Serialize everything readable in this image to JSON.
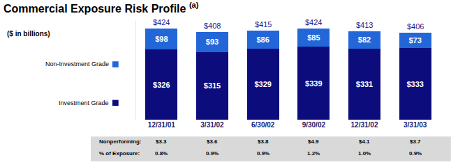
{
  "chart_data": {
    "type": "bar",
    "title": "Commercial Exposure Risk Profile",
    "title_note": "(a)",
    "subtitle": "($ in billions)",
    "categories": [
      "12/31/01",
      "3/31/02",
      "6/30/02",
      "9/30/02",
      "12/31/02",
      "3/31/03"
    ],
    "stacked": true,
    "data_labels": true,
    "tick_labels": "x",
    "grid": false,
    "ylim": [
      0,
      460
    ],
    "yticks": [
      0
    ],
    "series": [
      {
        "name": "Investment Grade",
        "color": "#0c0c7c",
        "values": [
          326,
          315,
          329,
          339,
          331,
          333
        ],
        "value_labels": [
          "$326",
          "$315",
          "$329",
          "$339",
          "$331",
          "$333"
        ]
      },
      {
        "name": "Non-Investment Grade",
        "color": "#2266d8",
        "values": [
          98,
          93,
          86,
          85,
          82,
          73
        ],
        "value_labels": [
          "$98",
          "$93",
          "$86",
          "$85",
          "$82",
          "$73"
        ]
      }
    ],
    "totals": [
      424,
      408,
      415,
      424,
      413,
      406
    ],
    "total_labels": [
      "$424",
      "$408",
      "$415",
      "$424",
      "$413",
      "$406"
    ],
    "table": {
      "rows": [
        {
          "label": "Nonperforming:",
          "values": [
            "$3.3",
            "$3.6",
            "$3.8",
            "$4.9",
            "$4.1",
            "$3.7"
          ]
        },
        {
          "label": "% of Exposure:",
          "values": [
            "0.8%",
            "0.9%",
            "0.9%",
            "1.2%",
            "1.0%",
            "0.9%"
          ]
        }
      ]
    }
  }
}
